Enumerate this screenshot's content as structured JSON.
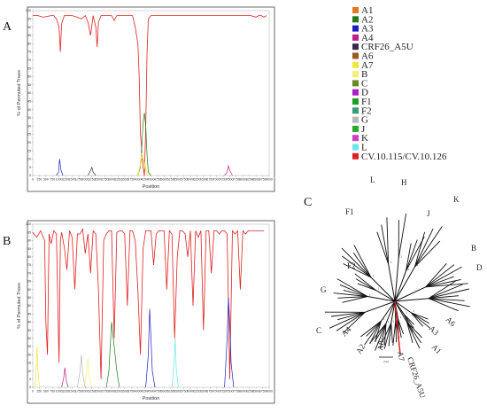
{
  "panels": {
    "a": {
      "letter": "A"
    },
    "b": {
      "letter": "B"
    },
    "c": {
      "letter": "C"
    }
  },
  "colors": {
    "A1": "#e8761a",
    "A2": "#1e7a1e",
    "A3": "#1d1dc4",
    "A4": "#c21e8a",
    "CRF26_A5U": "#3a2a4a",
    "A6": "#9a5a1e",
    "A7": "#f2e43a",
    "B": "#f5f07a",
    "C": "#6a8a2a",
    "D": "#b01cc8",
    "F1": "#1ea01e",
    "F2": "#3a9a7a",
    "G": "#b8b8b8",
    "J": "#2aaa2a",
    "K": "#d040c0",
    "L": "#6ae8e8",
    "CV.10.115/CV.10.126": "#e02020"
  },
  "legend": {
    "entries": [
      "A1",
      "A2",
      "A3",
      "A4",
      "CRF26_A5U",
      "A6",
      "A7",
      "B",
      "C",
      "D",
      "F1",
      "F2",
      "G",
      "J",
      "K",
      "L",
      "CV.10.115/CV.10.126"
    ]
  },
  "tree": {
    "labels": [
      {
        "text": "L",
        "x": 418,
        "y": 206,
        "r": 0
      },
      {
        "text": "H",
        "x": 453,
        "y": 209,
        "r": 0
      },
      {
        "text": "K",
        "x": 512,
        "y": 228,
        "r": 0
      },
      {
        "text": "J",
        "x": 482,
        "y": 244,
        "r": 0
      },
      {
        "text": "F1",
        "x": 390,
        "y": 242,
        "r": 0
      },
      {
        "text": "B",
        "x": 532,
        "y": 283,
        "r": 0
      },
      {
        "text": "F2",
        "x": 392,
        "y": 303,
        "r": 0
      },
      {
        "text": "D",
        "x": 538,
        "y": 305,
        "r": 0
      },
      {
        "text": "G",
        "x": 362,
        "y": 330,
        "r": 0
      },
      {
        "text": "A6",
        "x": 503,
        "y": 361,
        "r": 45
      },
      {
        "text": "A3",
        "x": 484,
        "y": 371,
        "r": 45
      },
      {
        "text": "C",
        "x": 357,
        "y": 376,
        "r": 0
      },
      {
        "text": "A1",
        "x": 487,
        "y": 392,
        "r": 45
      },
      {
        "text": "A4",
        "x": 389,
        "y": 380,
        "r": -45
      },
      {
        "text": "A2",
        "x": 407,
        "y": 400,
        "r": -60
      },
      {
        "text": "A8",
        "x": 432,
        "y": 396,
        "r": -80
      },
      {
        "text": "A7",
        "x": 449,
        "y": 397,
        "r": 80
      },
      {
        "text": "CRF26_A5U",
        "x": 460,
        "y": 404,
        "r": 72
      }
    ],
    "scale_label": "0.02",
    "bootstrap_label": "1"
  },
  "chart_data": [
    {
      "type": "line",
      "panel": "A",
      "xlabel": "Position",
      "ylabel": "% of Permuted Trees",
      "xlim": [
        0,
        9000
      ],
      "ylim": [
        0,
        100
      ],
      "x_ticks": [
        0,
        250,
        500,
        750,
        1000,
        1250,
        1500,
        1750,
        2000,
        2250,
        2500,
        2750,
        3000,
        3250,
        3500,
        3750,
        4000,
        4250,
        4500,
        4750,
        5000,
        5250,
        5500,
        5750,
        6000,
        6250,
        6500,
        6750,
        7000,
        7250,
        7500,
        7750,
        8000,
        8250,
        8500,
        8750,
        9000
      ],
      "x_tick_labels": [
        "0",
        "250",
        "500",
        "750",
        "1000",
        "1250",
        "1500",
        "1750",
        "2000",
        "2250",
        "2500",
        "2750",
        "3000",
        "3250",
        "3500",
        "3750",
        "4000",
        "4250",
        "4500",
        "4750",
        "5000",
        "5250",
        "5500",
        "5750",
        "6000",
        "6250",
        "6500",
        "6750",
        "7000",
        "7250",
        "7500",
        "7750",
        "8000",
        "8250",
        "8500",
        "8750",
        "9000"
      ],
      "y_ticks": [
        0,
        5,
        10,
        15,
        20,
        25,
        30,
        35,
        40,
        45,
        50,
        55,
        60,
        65,
        70,
        75,
        80,
        85,
        90,
        95,
        100
      ],
      "y_tick_labels": [
        "0",
        "5",
        "10",
        "15",
        "20",
        "25",
        "30",
        "35",
        "40",
        "45",
        "50",
        "55",
        "60",
        "65",
        "70",
        "75",
        "80",
        "85",
        "90",
        "95",
        "100"
      ],
      "series": [
        {
          "name": "CV.10.115/CV.10.126",
          "x": [
            0,
            200,
            400,
            700,
            800,
            900,
            1000,
            1050,
            1100,
            1200,
            1500,
            1700,
            1850,
            2000,
            2100,
            2200,
            2300,
            2400,
            2450,
            2500,
            2600,
            2800,
            3000,
            3100,
            3200,
            3500,
            3800,
            3900,
            4000,
            4050,
            4100,
            4150,
            4200,
            4250,
            4300,
            4350,
            4400,
            4500,
            4600,
            4800,
            5200,
            5600,
            6000,
            6400,
            6800,
            7200,
            7600,
            8000,
            8300,
            8500,
            8600,
            8700,
            8800,
            8900
          ],
          "y": [
            97,
            97,
            96,
            97,
            97,
            95,
            90,
            75,
            92,
            97,
            97,
            96,
            95,
            97,
            93,
            85,
            97,
            90,
            78,
            93,
            97,
            97,
            97,
            94,
            97,
            97,
            97,
            90,
            80,
            60,
            25,
            15,
            5,
            0,
            30,
            75,
            95,
            97,
            97,
            97,
            97,
            97,
            97,
            97,
            97,
            97,
            97,
            97,
            97,
            96,
            97,
            97,
            96,
            97
          ]
        },
        {
          "name": "A2",
          "x": [
            4000,
            4100,
            4150,
            4200,
            4250,
            4300,
            4350,
            4400,
            4500
          ],
          "y": [
            0,
            5,
            18,
            32,
            38,
            30,
            12,
            2,
            0
          ]
        },
        {
          "name": "A3",
          "x": [
            900,
            980,
            1020,
            1080,
            1150
          ],
          "y": [
            0,
            2,
            10,
            3,
            0
          ]
        },
        {
          "name": "A4",
          "x": [
            7300,
            7400,
            7450,
            7500,
            7600
          ],
          "y": [
            0,
            2,
            6,
            3,
            0
          ]
        },
        {
          "name": "A7",
          "x": [
            4000,
            4100,
            4180,
            4250,
            4320,
            4400
          ],
          "y": [
            0,
            6,
            12,
            8,
            4,
            0
          ]
        },
        {
          "name": "B",
          "x": [
            3950,
            4050,
            4150,
            4250,
            4350
          ],
          "y": [
            0,
            4,
            14,
            6,
            0
          ]
        },
        {
          "name": "CRF26_A5U",
          "x": [
            2100,
            2200,
            2250,
            2300,
            2400
          ],
          "y": [
            0,
            3,
            5,
            2,
            0
          ]
        }
      ]
    },
    {
      "type": "line",
      "panel": "B",
      "xlabel": "Position",
      "ylabel": "% of Permuted Trees",
      "xlim": [
        0,
        9000
      ],
      "ylim": [
        0,
        100
      ],
      "x_ticks": [
        0,
        250,
        500,
        750,
        1000,
        1250,
        1500,
        1750,
        2000,
        2250,
        2500,
        2750,
        3000,
        3250,
        3500,
        3750,
        4000,
        4250,
        4500,
        4750,
        5000,
        5250,
        5500,
        5750,
        6000,
        6250,
        6500,
        6750,
        7000,
        7250,
        7500,
        7750,
        8000,
        8250,
        8500,
        8750,
        9000
      ],
      "x_tick_labels": [
        "0",
        "250",
        "500",
        "750",
        "1000",
        "1250",
        "1500",
        "1750",
        "2000",
        "2250",
        "2500",
        "2750",
        "3000",
        "3250",
        "3500",
        "3750",
        "4000",
        "4250",
        "4500",
        "4750",
        "5000",
        "5250",
        "5500",
        "5750",
        "6000",
        "6250",
        "6500",
        "6750",
        "7000",
        "7250",
        "7500",
        "7750",
        "8000",
        "8250",
        "8500",
        "8750",
        "9000"
      ],
      "y_ticks": [
        0,
        5,
        10,
        15,
        20,
        25,
        30,
        35,
        40,
        45,
        50,
        55,
        60,
        65,
        70,
        75,
        80,
        85,
        90,
        95,
        100
      ],
      "y_tick_labels": [
        "0",
        "5",
        "10",
        "15",
        "20",
        "25",
        "30",
        "35",
        "40",
        "45",
        "50",
        "55",
        "60",
        "65",
        "70",
        "75",
        "80",
        "85",
        "90",
        "95",
        "100"
      ],
      "series": [
        {
          "name": "CV.10.115/CV.10.126",
          "x": [
            0,
            150,
            300,
            450,
            500,
            560,
            620,
            700,
            800,
            900,
            1000,
            1050,
            1100,
            1200,
            1300,
            1400,
            1500,
            1600,
            1700,
            1800,
            1900,
            2000,
            2100,
            2200,
            2300,
            2400,
            2500,
            2600,
            2700,
            2800,
            2900,
            3000,
            3100,
            3200,
            3300,
            3400,
            3500,
            3600,
            3700,
            3800,
            3900,
            4000,
            4100,
            4200,
            4300,
            4400,
            4500,
            4600,
            4700,
            4800,
            4900,
            5000,
            5100,
            5200,
            5300,
            5400,
            5500,
            5600,
            5700,
            5800,
            5900,
            6000,
            6100,
            6200,
            6300,
            6400,
            6500,
            6600,
            6700,
            6800,
            6900,
            7000,
            7100,
            7200,
            7300,
            7400,
            7500,
            7600,
            7700,
            7800,
            7900,
            8000,
            8100,
            8200,
            8300,
            8400,
            8500,
            8600,
            8700,
            8800
          ],
          "y": [
            95,
            92,
            96,
            90,
            40,
            20,
            94,
            88,
            96,
            94,
            15,
            90,
            95,
            86,
            72,
            96,
            92,
            60,
            94,
            94,
            97,
            82,
            94,
            70,
            96,
            94,
            60,
            5,
            90,
            94,
            96,
            96,
            30,
            95,
            96,
            96,
            94,
            50,
            96,
            96,
            90,
            60,
            20,
            85,
            96,
            96,
            96,
            75,
            94,
            96,
            96,
            96,
            60,
            96,
            94,
            30,
            80,
            96,
            96,
            94,
            80,
            96,
            50,
            96,
            92,
            96,
            35,
            96,
            96,
            70,
            96,
            96,
            94,
            96,
            96,
            94,
            5,
            96,
            94,
            96,
            60,
            96,
            94,
            96,
            96,
            96,
            96,
            96,
            96,
            96
          ]
        },
        {
          "name": "A7",
          "x": [
            80,
            120,
            160,
            200,
            240,
            280
          ],
          "y": [
            0,
            8,
            25,
            10,
            2,
            0
          ]
        },
        {
          "name": "A3",
          "x": [
            4300,
            4400,
            4450,
            4500,
            4550,
            4650
          ],
          "y": [
            0,
            20,
            48,
            30,
            10,
            0
          ]
        },
        {
          "name": "A3",
          "x": [
            7300,
            7400,
            7450,
            7500,
            7550,
            7650
          ],
          "y": [
            0,
            30,
            55,
            40,
            15,
            0
          ]
        },
        {
          "name": "L",
          "x": [
            5300,
            5380,
            5420,
            5460,
            5540
          ],
          "y": [
            0,
            15,
            30,
            12,
            0
          ]
        },
        {
          "name": "A2",
          "x": [
            2800,
            2900,
            3000,
            3100,
            3200,
            3300
          ],
          "y": [
            0,
            10,
            40,
            25,
            10,
            0
          ]
        },
        {
          "name": "A4",
          "x": [
            1100,
            1180,
            1220,
            1280,
            1350
          ],
          "y": [
            0,
            6,
            12,
            4,
            0
          ]
        },
        {
          "name": "G",
          "x": [
            1700,
            1800,
            1850,
            1900,
            2000
          ],
          "y": [
            0,
            10,
            20,
            8,
            0
          ]
        },
        {
          "name": "B",
          "x": [
            1950,
            2050,
            2100,
            2150,
            2250
          ],
          "y": [
            0,
            8,
            18,
            6,
            0
          ]
        }
      ]
    }
  ]
}
